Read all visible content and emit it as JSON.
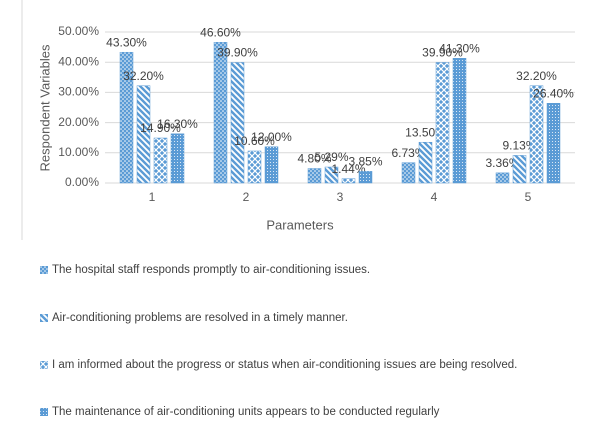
{
  "chart_data": {
    "type": "bar",
    "x_label": "Parameters",
    "y_label": "Respondent Variables",
    "categories": [
      "1",
      "2",
      "3",
      "4",
      "5"
    ],
    "ylim": [
      0,
      50
    ],
    "yticks": [
      {
        "value": 0,
        "label": "0.00%"
      },
      {
        "value": 10,
        "label": "10.00%"
      },
      {
        "value": 20,
        "label": "20.00%"
      },
      {
        "value": 30,
        "label": "30.00%"
      },
      {
        "value": 40,
        "label": "40.00%"
      },
      {
        "value": 50,
        "label": "50.00%"
      }
    ],
    "grid": true,
    "series": [
      {
        "name": "The hospital staff responds promptly to air-conditioning issues.",
        "color": "#5b9bd5",
        "values": [
          43.3,
          46.6,
          4.8,
          6.73,
          3.36
        ],
        "value_labels": [
          "43.30%",
          "46.60%",
          "4.80%",
          "6.73%",
          "3.36%"
        ]
      },
      {
        "name": "Air-conditioning problems are resolved in a timely manner.",
        "color": "#5b9bd5",
        "values": [
          32.2,
          39.9,
          5.29,
          13.5,
          9.13
        ],
        "value_labels": [
          "32.20%",
          "39.90%",
          "5.29%",
          "13.50%",
          "9.13%"
        ]
      },
      {
        "name": "I am informed about the progress or status when air-conditioning issues are being resolved.",
        "color": "#5b9bd5",
        "values": [
          14.9,
          10.6,
          1.44,
          39.9,
          32.2
        ],
        "value_labels": [
          "14.90%",
          "10.60%",
          "1.44%",
          "39.90%",
          "32.20%"
        ]
      },
      {
        "name": "The maintenance of air-conditioning units appears to be conducted regularly",
        "color": "#5b9bd5",
        "values": [
          16.3,
          12.0,
          3.85,
          41.3,
          26.4
        ],
        "value_labels": [
          "16.30%",
          "12.00%",
          "3.85%",
          "41.30%",
          "26.40%"
        ]
      }
    ]
  }
}
